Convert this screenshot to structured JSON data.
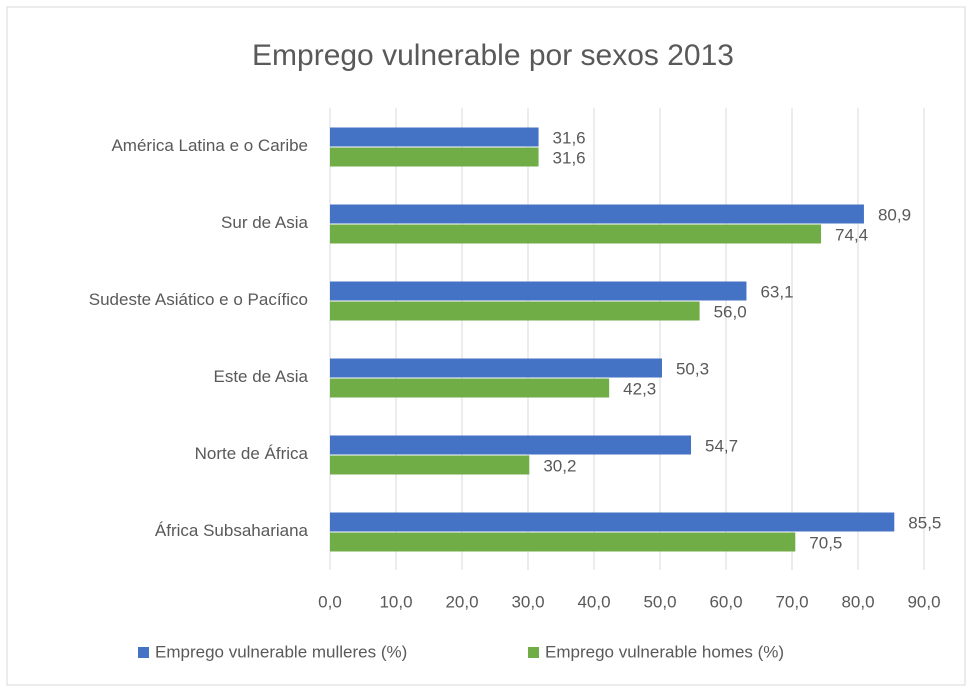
{
  "chart_data": {
    "type": "bar",
    "orientation": "horizontal",
    "title": "Emprego vulnerable por sexos 2013",
    "categories": [
      "América Latina e o Caribe",
      "Sur de Asia",
      "Sudeste Asiático e  o Pacífico",
      "Este de Asia",
      "Norte de África",
      "África Subsahariana"
    ],
    "series": [
      {
        "name": "Emprego vulnerable mulleres (%)",
        "color": "#4472c4",
        "values": [
          31.6,
          80.9,
          63.1,
          50.3,
          54.7,
          85.5
        ],
        "value_labels": [
          "31,6",
          "80,9",
          "63,1",
          "50,3",
          "54,7",
          "85,5"
        ]
      },
      {
        "name": "Emprego vulnerable homes (%)",
        "color": "#70ad47",
        "values": [
          31.6,
          74.4,
          56.0,
          42.3,
          30.2,
          70.5
        ],
        "value_labels": [
          "31,6",
          "74,4",
          "56,0",
          "42,3",
          "30,2",
          "70,5"
        ]
      }
    ],
    "xlim": [
      0,
      90
    ],
    "xticks": [
      {
        "value": 0,
        "label": "0,0"
      },
      {
        "value": 10,
        "label": "10,0"
      },
      {
        "value": 20,
        "label": "20,0"
      },
      {
        "value": 30,
        "label": "30,0"
      },
      {
        "value": 40,
        "label": "40,0"
      },
      {
        "value": 50,
        "label": "50,0"
      },
      {
        "value": 60,
        "label": "60,0"
      },
      {
        "value": 70,
        "label": "70,0"
      },
      {
        "value": 80,
        "label": "80,0"
      },
      {
        "value": 90,
        "label": "90,0"
      }
    ],
    "grid": true,
    "legend": "bottom"
  }
}
